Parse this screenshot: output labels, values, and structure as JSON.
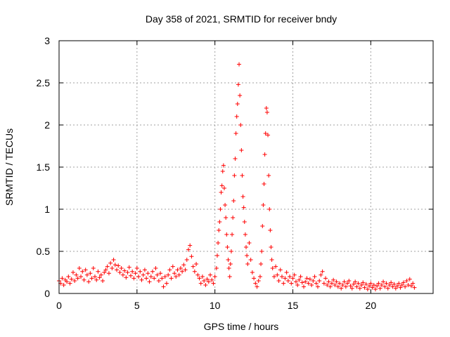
{
  "chart_data": {
    "type": "scatter",
    "title": "Day 358 of 2021, SRMTID for receiver bndy",
    "xlabel": "GPS time / hours",
    "ylabel": "SRMTID / TECUs",
    "xlim": [
      0,
      24
    ],
    "ylim": [
      0,
      3
    ],
    "x_ticks": [
      0,
      5,
      10,
      15,
      20
    ],
    "x_tick_labels": [
      "0",
      "5",
      "10",
      "15",
      "20"
    ],
    "y_ticks": [
      0,
      0.5,
      1,
      1.5,
      2,
      2.5,
      3
    ],
    "y_tick_labels": [
      "0",
      "0.5",
      "1",
      "1.5",
      "2",
      "2.5",
      "3"
    ],
    "grid": true,
    "marker": "+",
    "series": [
      {
        "name": "SRMTID",
        "color": "#ff0000",
        "points": [
          [
            0.0,
            0.15
          ],
          [
            0.1,
            0.12
          ],
          [
            0.2,
            0.18
          ],
          [
            0.3,
            0.1
          ],
          [
            0.4,
            0.16
          ],
          [
            0.5,
            0.14
          ],
          [
            0.6,
            0.2
          ],
          [
            0.7,
            0.12
          ],
          [
            0.8,
            0.17
          ],
          [
            0.9,
            0.25
          ],
          [
            1.0,
            0.15
          ],
          [
            1.1,
            0.22
          ],
          [
            1.2,
            0.18
          ],
          [
            1.3,
            0.3
          ],
          [
            1.4,
            0.2
          ],
          [
            1.5,
            0.26
          ],
          [
            1.6,
            0.16
          ],
          [
            1.7,
            0.28
          ],
          [
            1.8,
            0.22
          ],
          [
            1.9,
            0.14
          ],
          [
            2.0,
            0.24
          ],
          [
            2.1,
            0.18
          ],
          [
            2.2,
            0.3
          ],
          [
            2.3,
            0.2
          ],
          [
            2.4,
            0.16
          ],
          [
            2.5,
            0.26
          ],
          [
            2.6,
            0.19
          ],
          [
            2.7,
            0.22
          ],
          [
            2.8,
            0.15
          ],
          [
            2.9,
            0.25
          ],
          [
            3.0,
            0.28
          ],
          [
            3.1,
            0.32
          ],
          [
            3.2,
            0.24
          ],
          [
            3.3,
            0.36
          ],
          [
            3.4,
            0.3
          ],
          [
            3.5,
            0.4
          ],
          [
            3.6,
            0.34
          ],
          [
            3.7,
            0.28
          ],
          [
            3.8,
            0.33
          ],
          [
            3.9,
            0.25
          ],
          [
            4.0,
            0.3
          ],
          [
            4.1,
            0.22
          ],
          [
            4.2,
            0.27
          ],
          [
            4.3,
            0.19
          ],
          [
            4.4,
            0.25
          ],
          [
            4.5,
            0.31
          ],
          [
            4.6,
            0.21
          ],
          [
            4.7,
            0.26
          ],
          [
            4.8,
            0.18
          ],
          [
            4.9,
            0.24
          ],
          [
            5.0,
            0.3
          ],
          [
            5.1,
            0.2
          ],
          [
            5.2,
            0.26
          ],
          [
            5.3,
            0.16
          ],
          [
            5.4,
            0.22
          ],
          [
            5.5,
            0.28
          ],
          [
            5.6,
            0.18
          ],
          [
            5.7,
            0.24
          ],
          [
            5.8,
            0.14
          ],
          [
            5.9,
            0.2
          ],
          [
            6.0,
            0.26
          ],
          [
            6.1,
            0.18
          ],
          [
            6.2,
            0.3
          ],
          [
            6.3,
            0.22
          ],
          [
            6.4,
            0.15
          ],
          [
            6.5,
            0.24
          ],
          [
            6.6,
            0.18
          ],
          [
            6.7,
            0.08
          ],
          [
            6.8,
            0.2
          ],
          [
            6.9,
            0.12
          ],
          [
            7.0,
            0.22
          ],
          [
            7.1,
            0.28
          ],
          [
            7.2,
            0.18
          ],
          [
            7.3,
            0.32
          ],
          [
            7.4,
            0.24
          ],
          [
            7.5,
            0.2
          ],
          [
            7.6,
            0.28
          ],
          [
            7.7,
            0.22
          ],
          [
            7.8,
            0.3
          ],
          [
            7.9,
            0.26
          ],
          [
            8.0,
            0.34
          ],
          [
            8.1,
            0.28
          ],
          [
            8.2,
            0.4
          ],
          [
            8.3,
            0.52
          ],
          [
            8.4,
            0.57
          ],
          [
            8.5,
            0.44
          ],
          [
            8.6,
            0.32
          ],
          [
            8.7,
            0.26
          ],
          [
            8.8,
            0.35
          ],
          [
            8.9,
            0.22
          ],
          [
            9.0,
            0.18
          ],
          [
            9.1,
            0.12
          ],
          [
            9.2,
            0.2
          ],
          [
            9.3,
            0.15
          ],
          [
            9.4,
            0.1
          ],
          [
            9.5,
            0.17
          ],
          [
            9.6,
            0.14
          ],
          [
            9.7,
            0.22
          ],
          [
            9.8,
            0.16
          ],
          [
            9.9,
            0.12
          ],
          [
            10.0,
            0.2
          ],
          [
            10.1,
            0.3
          ],
          [
            10.15,
            0.45
          ],
          [
            10.2,
            0.6
          ],
          [
            10.25,
            0.75
          ],
          [
            10.3,
            0.85
          ],
          [
            10.35,
            1.0
          ],
          [
            10.4,
            1.2
          ],
          [
            10.45,
            1.28
          ],
          [
            10.5,
            1.45
          ],
          [
            10.55,
            1.52
          ],
          [
            10.6,
            1.25
          ],
          [
            10.65,
            1.05
          ],
          [
            10.7,
            0.9
          ],
          [
            10.75,
            0.7
          ],
          [
            10.8,
            0.55
          ],
          [
            10.85,
            0.4
          ],
          [
            10.9,
            0.3
          ],
          [
            10.95,
            0.2
          ],
          [
            11.0,
            0.35
          ],
          [
            11.05,
            0.5
          ],
          [
            11.1,
            0.7
          ],
          [
            11.15,
            0.9
          ],
          [
            11.2,
            1.1
          ],
          [
            11.25,
            1.4
          ],
          [
            11.3,
            1.6
          ],
          [
            11.35,
            1.9
          ],
          [
            11.4,
            2.1
          ],
          [
            11.45,
            2.25
          ],
          [
            11.5,
            2.48
          ],
          [
            11.55,
            2.72
          ],
          [
            11.6,
            2.35
          ],
          [
            11.65,
            2.0
          ],
          [
            11.7,
            1.7
          ],
          [
            11.75,
            1.4
          ],
          [
            11.8,
            1.15
          ],
          [
            11.85,
            1.02
          ],
          [
            11.9,
            0.85
          ],
          [
            11.95,
            0.7
          ],
          [
            12.0,
            0.55
          ],
          [
            12.05,
            0.45
          ],
          [
            12.1,
            0.35
          ],
          [
            12.2,
            0.6
          ],
          [
            12.3,
            0.4
          ],
          [
            12.4,
            0.25
          ],
          [
            12.5,
            0.18
          ],
          [
            12.6,
            0.12
          ],
          [
            12.7,
            0.08
          ],
          [
            12.8,
            0.15
          ],
          [
            12.9,
            0.2
          ],
          [
            12.95,
            0.35
          ],
          [
            13.0,
            0.5
          ],
          [
            13.05,
            0.8
          ],
          [
            13.1,
            1.05
          ],
          [
            13.15,
            1.3
          ],
          [
            13.2,
            1.65
          ],
          [
            13.25,
            1.9
          ],
          [
            13.3,
            2.2
          ],
          [
            13.35,
            2.15
          ],
          [
            13.4,
            1.88
          ],
          [
            13.45,
            1.4
          ],
          [
            13.5,
            1.0
          ],
          [
            13.55,
            0.75
          ],
          [
            13.6,
            0.55
          ],
          [
            13.65,
            0.4
          ],
          [
            13.7,
            0.3
          ],
          [
            13.8,
            0.2
          ],
          [
            13.9,
            0.32
          ],
          [
            14.0,
            0.22
          ],
          [
            14.1,
            0.15
          ],
          [
            14.2,
            0.28
          ],
          [
            14.3,
            0.2
          ],
          [
            14.4,
            0.12
          ],
          [
            14.5,
            0.18
          ],
          [
            14.6,
            0.25
          ],
          [
            14.7,
            0.15
          ],
          [
            14.8,
            0.2
          ],
          [
            14.9,
            0.12
          ],
          [
            15.0,
            0.18
          ],
          [
            15.1,
            0.22
          ],
          [
            15.2,
            0.14
          ],
          [
            15.3,
            0.1
          ],
          [
            15.4,
            0.16
          ],
          [
            15.5,
            0.2
          ],
          [
            15.6,
            0.13
          ],
          [
            15.7,
            0.08
          ],
          [
            15.8,
            0.14
          ],
          [
            15.9,
            0.18
          ],
          [
            16.0,
            0.12
          ],
          [
            16.1,
            0.17
          ],
          [
            16.2,
            0.1
          ],
          [
            16.3,
            0.15
          ],
          [
            16.4,
            0.2
          ],
          [
            16.5,
            0.12
          ],
          [
            16.6,
            0.08
          ],
          [
            16.7,
            0.15
          ],
          [
            16.8,
            0.22
          ],
          [
            16.9,
            0.26
          ],
          [
            17.0,
            0.12
          ],
          [
            17.1,
            0.18
          ],
          [
            17.2,
            0.1
          ],
          [
            17.3,
            0.14
          ],
          [
            17.4,
            0.08
          ],
          [
            17.5,
            0.12
          ],
          [
            17.6,
            0.16
          ],
          [
            17.7,
            0.1
          ],
          [
            17.8,
            0.14
          ],
          [
            17.9,
            0.08
          ],
          [
            18.0,
            0.12
          ],
          [
            18.1,
            0.06
          ],
          [
            18.2,
            0.1
          ],
          [
            18.3,
            0.14
          ],
          [
            18.4,
            0.08
          ],
          [
            18.5,
            0.12
          ],
          [
            18.6,
            0.15
          ],
          [
            18.7,
            0.09
          ],
          [
            18.8,
            0.06
          ],
          [
            18.9,
            0.11
          ],
          [
            19.0,
            0.14
          ],
          [
            19.1,
            0.08
          ],
          [
            19.2,
            0.12
          ],
          [
            19.3,
            0.06
          ],
          [
            19.4,
            0.1
          ],
          [
            19.5,
            0.13
          ],
          [
            19.6,
            0.07
          ],
          [
            19.7,
            0.11
          ],
          [
            19.8,
            0.05
          ],
          [
            19.9,
            0.09
          ],
          [
            20.0,
            0.12
          ],
          [
            20.1,
            0.07
          ],
          [
            20.2,
            0.1
          ],
          [
            20.3,
            0.05
          ],
          [
            20.4,
            0.09
          ],
          [
            20.5,
            0.12
          ],
          [
            20.6,
            0.06
          ],
          [
            20.7,
            0.1
          ],
          [
            20.8,
            0.14
          ],
          [
            20.9,
            0.08
          ],
          [
            21.0,
            0.12
          ],
          [
            21.1,
            0.06
          ],
          [
            21.2,
            0.1
          ],
          [
            21.3,
            0.13
          ],
          [
            21.4,
            0.08
          ],
          [
            21.5,
            0.11
          ],
          [
            21.6,
            0.06
          ],
          [
            21.7,
            0.09
          ],
          [
            21.8,
            0.12
          ],
          [
            21.9,
            0.07
          ],
          [
            22.0,
            0.1
          ],
          [
            22.1,
            0.13
          ],
          [
            22.2,
            0.08
          ],
          [
            22.3,
            0.15
          ],
          [
            22.4,
            0.1
          ],
          [
            22.5,
            0.17
          ],
          [
            22.6,
            0.09
          ],
          [
            22.7,
            0.12
          ],
          [
            22.8,
            0.07
          ]
        ]
      }
    ]
  }
}
